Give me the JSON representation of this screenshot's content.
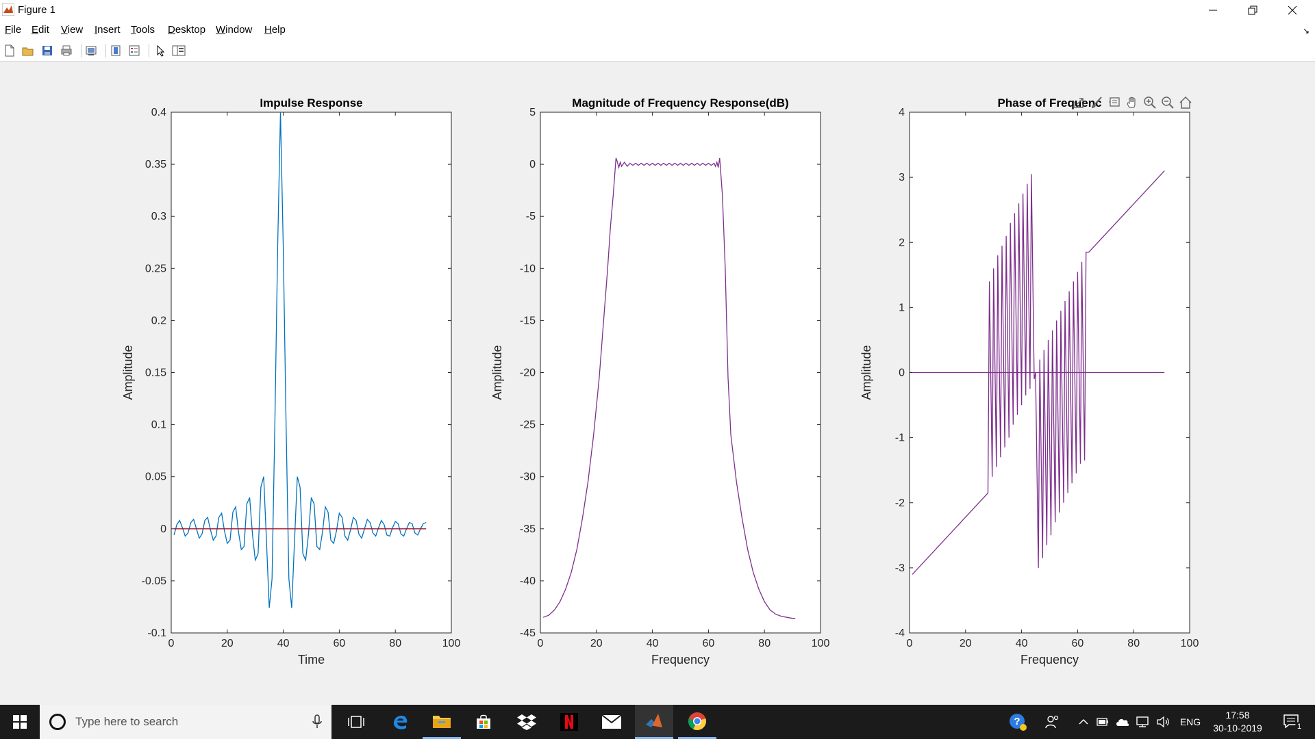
{
  "window": {
    "title": "Figure 1",
    "controls": {
      "minimize": "minimize",
      "maximize": "restore",
      "close": "close"
    }
  },
  "menu": [
    {
      "label": "File",
      "accel": "F",
      "rest": "ile"
    },
    {
      "label": "Edit",
      "accel": "E",
      "rest": "dit"
    },
    {
      "label": "View",
      "accel": "V",
      "rest": "iew"
    },
    {
      "label": "Insert",
      "accel": "I",
      "rest": "nsert"
    },
    {
      "label": "Tools",
      "accel": "T",
      "rest": "ools"
    },
    {
      "label": "Desktop",
      "accel": "D",
      "rest": "esktop"
    },
    {
      "label": "Window",
      "accel": "W",
      "rest": "indow"
    },
    {
      "label": "Help",
      "accel": "H",
      "rest": "elp"
    }
  ],
  "toolbar_icons": [
    "new-figure-icon",
    "open-file-icon",
    "save-icon",
    "print-icon",
    "link-plot-icon",
    "colorbar-icon",
    "legend-icon",
    "edit-plot-arrow-icon",
    "property-inspector-icon"
  ],
  "axes_toolbar_icons": [
    "export-icon",
    "brush-icon",
    "data-tips-icon",
    "pan-icon",
    "zoom-in-icon",
    "zoom-out-icon",
    "home-restore-icon"
  ],
  "colors": {
    "impulse": "#0072BD",
    "zero_line": "#A2142F",
    "response": "#7E2F8E"
  },
  "chart_data": [
    {
      "type": "line",
      "title": "Impulse Response",
      "xlabel": "Time",
      "ylabel": "Amplitude",
      "xlim": [
        0,
        100
      ],
      "ylim": [
        -0.1,
        0.4
      ],
      "xticks": [
        0,
        20,
        40,
        60,
        80,
        100
      ],
      "yticks": [
        -0.1,
        -0.05,
        0,
        0.05,
        0.1,
        0.15,
        0.2,
        0.25,
        0.3,
        0.35,
        0.4
      ],
      "series": [
        {
          "color": "#0072BD",
          "x": [
            1,
            2,
            3,
            4,
            5,
            6,
            7,
            8,
            9,
            10,
            11,
            12,
            13,
            14,
            15,
            16,
            17,
            18,
            19,
            20,
            21,
            22,
            23,
            24,
            25,
            26,
            27,
            28,
            29,
            30,
            31,
            32,
            33,
            34,
            35,
            36,
            37,
            38,
            39,
            40,
            41,
            42,
            43,
            44,
            45,
            46,
            47,
            48,
            49,
            50,
            51,
            52,
            53,
            54,
            55,
            56,
            57,
            58,
            59,
            60,
            61,
            62,
            63,
            64,
            65,
            66,
            67,
            68,
            69,
            70,
            71,
            72,
            73,
            74,
            75,
            76,
            77,
            78,
            79,
            80,
            81,
            82,
            83,
            84,
            85,
            86,
            87,
            88,
            89,
            90,
            91
          ],
          "y": [
            -0.006,
            0.004,
            0.008,
            0.001,
            -0.007,
            -0.004,
            0.006,
            0.009,
            0.0,
            -0.009,
            -0.005,
            0.008,
            0.011,
            -0.001,
            -0.011,
            -0.007,
            0.011,
            0.015,
            -0.002,
            -0.014,
            -0.011,
            0.016,
            0.021,
            -0.003,
            -0.02,
            -0.017,
            0.024,
            0.03,
            -0.005,
            -0.03,
            -0.024,
            0.04,
            0.05,
            -0.012,
            -0.076,
            -0.048,
            0.1,
            0.27,
            0.4,
            0.27,
            0.1,
            -0.048,
            -0.076,
            -0.012,
            0.05,
            0.04,
            -0.024,
            -0.03,
            -0.005,
            0.03,
            0.024,
            -0.017,
            -0.02,
            -0.003,
            0.021,
            0.016,
            -0.011,
            -0.014,
            -0.002,
            0.015,
            0.011,
            -0.007,
            -0.011,
            -0.001,
            0.011,
            0.008,
            -0.005,
            -0.009,
            0.0,
            0.009,
            0.006,
            -0.004,
            -0.007,
            0.001,
            0.008,
            0.004,
            -0.006,
            -0.007,
            0.001,
            0.007,
            0.005,
            -0.005,
            -0.007,
            0.0,
            0.006,
            0.005,
            -0.004,
            -0.006,
            0.0,
            0.005,
            0.006
          ]
        },
        {
          "color": "#A2142F",
          "x": [
            1,
            91
          ],
          "y": [
            0,
            0
          ]
        }
      ]
    },
    {
      "type": "line",
      "title": "Magnitude of Frequency Response(dB)",
      "xlabel": "Frequency",
      "ylabel": "Amplitude",
      "xlim": [
        0,
        100
      ],
      "ylim": [
        -45,
        5
      ],
      "xticks": [
        0,
        20,
        40,
        60,
        80,
        100
      ],
      "yticks": [
        -45,
        -40,
        -35,
        -30,
        -25,
        -20,
        -15,
        -10,
        -5,
        0,
        5
      ],
      "series": [
        {
          "color": "#7E2F8E",
          "x": [
            1,
            3,
            5,
            7,
            9,
            11,
            13,
            15,
            17,
            19,
            21,
            23,
            24,
            25,
            26,
            27,
            27.5,
            28,
            28.5,
            29,
            30,
            31,
            32,
            33,
            34,
            35,
            36,
            37,
            38,
            39,
            40,
            41,
            42,
            43,
            44,
            45,
            46,
            47,
            48,
            49,
            50,
            51,
            52,
            53,
            54,
            55,
            56,
            57,
            58,
            59,
            60,
            61,
            62,
            62.5,
            63,
            63.5,
            64,
            65,
            66,
            67,
            68,
            70,
            72,
            74,
            76,
            78,
            80,
            82,
            84,
            86,
            88,
            90,
            91
          ],
          "y": [
            -43.5,
            -43.3,
            -42.8,
            -42.0,
            -40.8,
            -39.2,
            -37.0,
            -34.0,
            -30.5,
            -26.0,
            -20.5,
            -13.5,
            -10.0,
            -6.0,
            -3.0,
            0.6,
            0.2,
            -0.3,
            0.2,
            -0.2,
            0.2,
            -0.2,
            0.1,
            -0.1,
            0.1,
            -0.1,
            0.1,
            -0.1,
            0.1,
            -0.1,
            0.1,
            -0.1,
            0.1,
            -0.1,
            0.1,
            -0.1,
            0.1,
            -0.1,
            0.1,
            -0.1,
            0.1,
            -0.1,
            0.1,
            -0.1,
            0.1,
            -0.1,
            0.1,
            -0.1,
            0.1,
            -0.1,
            0.1,
            -0.1,
            0.1,
            -0.2,
            0.2,
            -0.3,
            0.6,
            -3.0,
            -10.0,
            -20.5,
            -26.0,
            -30.5,
            -34.0,
            -37.0,
            -39.2,
            -40.8,
            -42.0,
            -42.8,
            -43.2,
            -43.4,
            -43.5,
            -43.6,
            -43.6
          ]
        }
      ]
    },
    {
      "type": "line",
      "title": "Phase of Frequenc",
      "xlabel": "Frequency",
      "ylabel": "Amplitude",
      "xlim": [
        0,
        100
      ],
      "ylim": [
        -4,
        4
      ],
      "xticks": [
        0,
        20,
        40,
        60,
        80,
        100
      ],
      "yticks": [
        -4,
        -3,
        -2,
        -1,
        0,
        1,
        2,
        3,
        4
      ],
      "series": [
        {
          "color": "#7E2F8E",
          "x": [
            1,
            28,
            28.5,
            29.5,
            30,
            31,
            31.5,
            32.5,
            33,
            34,
            34.5,
            35.5,
            36,
            37,
            37.5,
            38.5,
            39,
            40,
            40.5,
            41.5,
            42,
            43,
            43.5,
            44.5,
            45,
            46,
            46.5,
            47.5,
            48,
            49,
            49.5,
            50.5,
            51,
            52,
            52.5,
            53.5,
            54,
            55,
            55.5,
            56.5,
            57,
            58,
            58.5,
            59.5,
            60,
            61,
            61.5,
            62.5,
            63,
            64,
            91
          ],
          "y": [
            -3.1,
            -1.85,
            1.4,
            -1.6,
            1.6,
            -1.45,
            1.8,
            -1.3,
            1.95,
            -1.15,
            2.1,
            -1.0,
            2.3,
            -0.8,
            2.45,
            -0.65,
            2.6,
            -0.5,
            2.75,
            -0.35,
            2.9,
            -0.25,
            3.05,
            -0.1,
            0.0,
            -3.0,
            0.2,
            -2.85,
            0.35,
            -2.65,
            0.5,
            -2.5,
            0.65,
            -2.3,
            0.8,
            -2.15,
            0.95,
            -2.0,
            1.1,
            -1.85,
            1.25,
            -1.7,
            1.4,
            -1.55,
            1.55,
            -1.4,
            1.7,
            -1.35,
            1.85,
            1.85,
            3.1
          ]
        },
        {
          "color": "#7E2F8E",
          "x": [
            1,
            91
          ],
          "y": [
            0,
            0
          ]
        }
      ]
    }
  ],
  "taskbar": {
    "search_placeholder": "Type here to search",
    "apps": [
      "task-view-icon",
      "edge-icon",
      "file-explorer-icon",
      "store-icon",
      "dropbox-icon",
      "netflix-icon",
      "mail-icon",
      "matlab-icon",
      "chrome-icon"
    ],
    "language": "ENG",
    "time": "17:58",
    "date": "30-10-2019",
    "notification_count": "1"
  }
}
